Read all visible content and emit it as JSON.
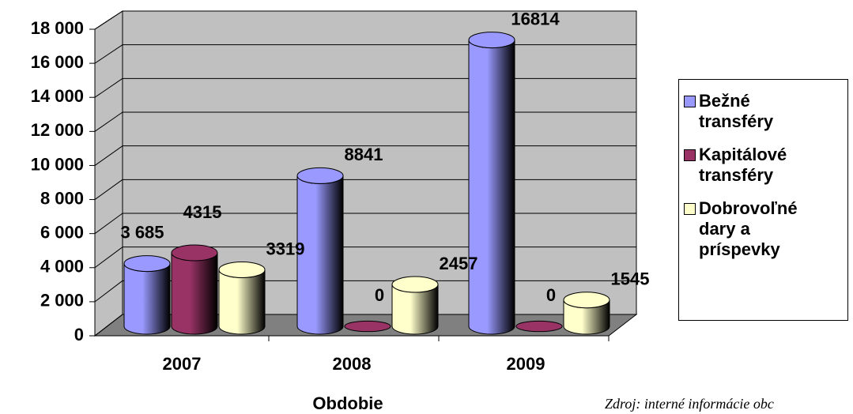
{
  "chart_data": {
    "type": "bar3d",
    "categories": [
      "2007",
      "2008",
      "2009"
    ],
    "series": [
      {
        "name": "Bežné transféry",
        "color": "#9999ff",
        "values": [
          3685,
          8841,
          16814
        ],
        "value_labels": [
          "3 685",
          "8841",
          "16814"
        ]
      },
      {
        "name": "Kapitálové transféry",
        "color": "#993366",
        "values": [
          4315,
          0,
          0
        ]
      },
      {
        "name": "Dobrovoľné dary a príspevky",
        "color": "#ffffcc",
        "values": [
          3319,
          2457,
          1545
        ]
      }
    ],
    "ylim": [
      0,
      18000
    ],
    "yticks": [
      0,
      {
        "value": 2000,
        "label": "2 000"
      },
      {
        "value": 4000,
        "label": "4 000"
      },
      {
        "value": 6000,
        "label": "6 000"
      },
      {
        "value": 8000,
        "label": "8 000"
      },
      {
        "value": 10000,
        "label": "10 000"
      },
      {
        "value": 12000,
        "label": "12 000"
      },
      {
        "value": 14000,
        "label": "14 000"
      },
      {
        "value": 16000,
        "label": "16 000"
      },
      {
        "value": 18000,
        "label": "18 000"
      }
    ],
    "grid": true,
    "xlabel": "Obdobie",
    "source": "Zdroj: interné informácie obc",
    "legend": "right"
  }
}
